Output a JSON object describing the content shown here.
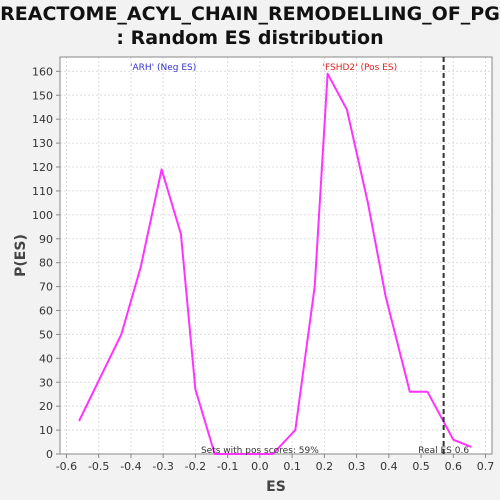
{
  "title_line1": "REACTOME_ACYL_CHAIN_REMODELLING_OF_PG",
  "title_line2": ": Random ES distribution",
  "chart_data": {
    "type": "line",
    "title": "REACTOME_ACYL_CHAIN_REMODELLING_OF_PG : Random ES distribution",
    "xlabel": "ES",
    "ylabel": "P(ES)",
    "xlim": [
      -0.62,
      0.72
    ],
    "ylim": [
      0,
      166
    ],
    "xticks": [
      "-0.6",
      "-0.5",
      "-0.4",
      "-0.3",
      "-0.2",
      "-0.1",
      "0.0",
      "0.1",
      "0.2",
      "0.3",
      "0.4",
      "0.5",
      "0.6",
      "0.7"
    ],
    "yticks": [
      "0",
      "10",
      "20",
      "30",
      "40",
      "50",
      "60",
      "70",
      "80",
      "90",
      "100",
      "110",
      "120",
      "130",
      "140",
      "150",
      "160"
    ],
    "grid": true,
    "series": [
      {
        "color": "#ff33ff",
        "x": [
          -0.56,
          -0.43,
          -0.37,
          -0.305,
          -0.245,
          -0.2,
          -0.14,
          -0.075,
          -0.02,
          0.04,
          0.11,
          0.17,
          0.21,
          0.27,
          0.335,
          0.39,
          0.465,
          0.52,
          0.6,
          0.655
        ],
        "y": [
          14,
          50,
          78,
          119,
          92,
          27,
          0,
          0,
          0,
          0,
          10,
          70,
          159,
          144,
          105,
          66,
          26,
          26,
          6,
          3
        ]
      }
    ],
    "real_es": 0.57,
    "annotations": {
      "neg_label": "'ARH' (Neg ES)",
      "neg_color": "#3333cc",
      "pos_label": "'FSHD2' (Pos ES)",
      "pos_color": "#dd2222",
      "pos_scores": "Sets with pos scores: 59%",
      "real_es_label": "Real ES 0.6"
    }
  }
}
